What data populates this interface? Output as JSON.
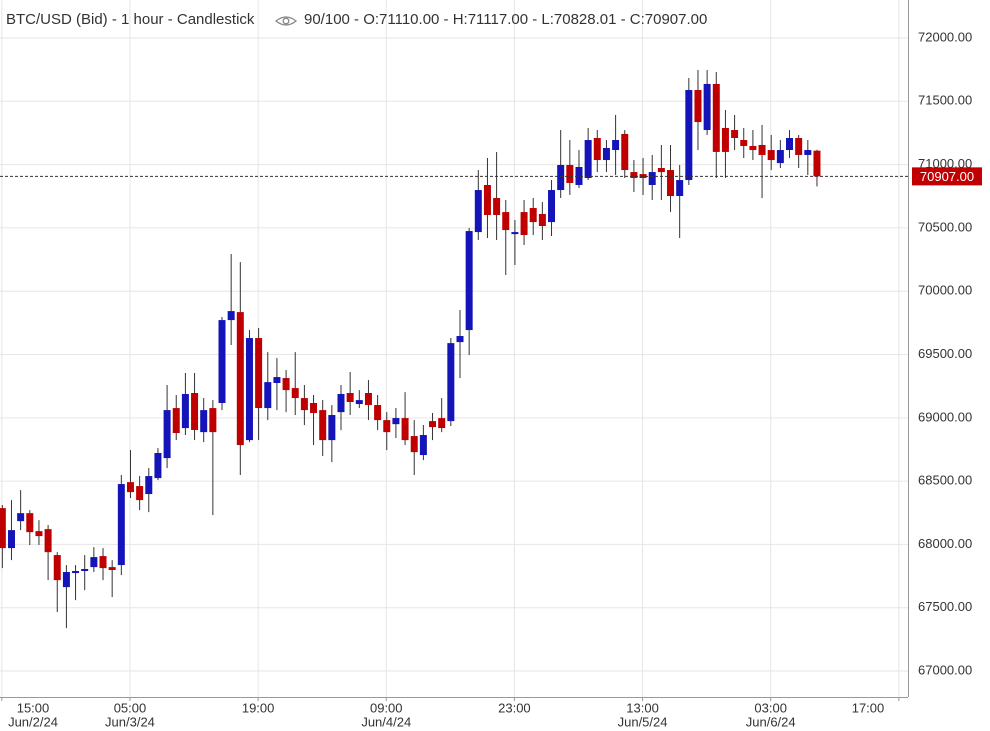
{
  "chart_data": {
    "type": "candlestick",
    "title": "BTC/USD (Bid) - 1 hour - Candlestick",
    "ohlc_summary": "90/100 - O:71110.00 - H:71117.00 - L:70828.01 - C:70907.00",
    "up_color": "#1414b8",
    "down_color": "#c00000",
    "grid": true,
    "xlim": [
      -0.2,
      99
    ],
    "ylim": [
      66795,
      72300
    ],
    "xticks": [
      {
        "value": 0,
        "label": "15:00",
        "date": "Jun/2/24"
      },
      {
        "value": 14,
        "label": "05:00",
        "date": "Jun/3/24"
      },
      {
        "value": 28,
        "label": "19:00"
      },
      {
        "value": 42,
        "label": "09:00",
        "date": "Jun/4/24"
      },
      {
        "value": 56,
        "label": "23:00"
      },
      {
        "value": 70,
        "label": "13:00",
        "date": "Jun/5/24"
      },
      {
        "value": 84,
        "label": "03:00",
        "date": "Jun/6/24"
      },
      {
        "value": 98,
        "label": "17:00"
      }
    ],
    "yticks": [
      {
        "value": 67000,
        "label": "67000.00"
      },
      {
        "value": 67500,
        "label": "67500.00"
      },
      {
        "value": 68000,
        "label": "68000.00"
      },
      {
        "value": 68500,
        "label": "68500.00"
      },
      {
        "value": 69000,
        "label": "69000.00"
      },
      {
        "value": 69500,
        "label": "69500.00"
      },
      {
        "value": 70000,
        "label": "70000.00"
      },
      {
        "value": 70500,
        "label": "70500.00"
      },
      {
        "value": 71000,
        "label": "71000.00"
      },
      {
        "value": 71500,
        "label": "71500.00"
      },
      {
        "value": 72000,
        "label": "72000.00"
      }
    ],
    "last_price": {
      "value": 70907,
      "label": "70907.00"
    },
    "x": [
      0,
      1,
      2,
      3,
      4,
      5,
      6,
      7,
      8,
      9,
      10,
      11,
      12,
      13,
      14,
      15,
      16,
      17,
      18,
      19,
      20,
      21,
      22,
      23,
      24,
      25,
      26,
      27,
      28,
      29,
      30,
      31,
      32,
      33,
      34,
      35,
      36,
      37,
      38,
      39,
      40,
      41,
      42,
      43,
      44,
      45,
      46,
      47,
      48,
      49,
      50,
      51,
      52,
      53,
      54,
      55,
      56,
      57,
      58,
      59,
      60,
      61,
      62,
      63,
      64,
      65,
      66,
      67,
      68,
      69,
      70,
      71,
      72,
      73,
      74,
      75,
      76,
      77,
      78,
      79,
      80,
      81,
      82,
      83,
      84,
      85,
      86,
      87,
      88,
      89
    ],
    "open": [
      68287,
      67971,
      68184,
      68247,
      68105,
      68121,
      67916,
      67663,
      67774,
      67790,
      67821,
      67908,
      67821,
      67837,
      68492,
      68461,
      68398,
      68524,
      68682,
      69077,
      68919,
      69196,
      68887,
      69077,
      69117,
      69772,
      69835,
      68824,
      69630,
      69077,
      69275,
      69314,
      69235,
      69156,
      69117,
      69061,
      68824,
      69045,
      69196,
      69109,
      69196,
      69101,
      68982,
      68950,
      68998,
      68856,
      68706,
      68974,
      68998,
      68974,
      69598,
      69693,
      70467,
      70839,
      70736,
      70625,
      70451,
      70625,
      70657,
      70610,
      70546,
      70799,
      70997,
      70839,
      70894,
      71210,
      71036,
      71115,
      71242,
      70941,
      70925,
      70839,
      70973,
      70957,
      70752,
      70878,
      71589,
      71273,
      71637,
      71289,
      71273,
      71194,
      71147,
      71155,
      71115,
      71012,
      71115,
      71210,
      71076,
      71110
    ],
    "high": [
      68311,
      68350,
      68429,
      68271,
      68192,
      68153,
      67939,
      67837,
      67837,
      67916,
      67979,
      67971,
      67876,
      68548,
      68745,
      68540,
      68603,
      68761,
      69259,
      69180,
      69354,
      69354,
      69156,
      69140,
      69796,
      70294,
      70230,
      69693,
      69709,
      69519,
      69472,
      69377,
      69519,
      69259,
      69180,
      69140,
      69101,
      69259,
      69362,
      69219,
      69298,
      69180,
      69045,
      69077,
      69203,
      68982,
      68943,
      69038,
      69156,
      69630,
      69851,
      70499,
      70957,
      71052,
      71099,
      70720,
      70562,
      70720,
      70736,
      70704,
      70878,
      71273,
      71194,
      71115,
      71289,
      71273,
      71194,
      71392,
      71273,
      71036,
      71052,
      71076,
      71155,
      71155,
      70997,
      71684,
      71747,
      71747,
      71731,
      71431,
      71392,
      71289,
      71273,
      71313,
      71234,
      71194,
      71273,
      71234,
      71194,
      71117
    ],
    "low": [
      67813,
      67876,
      68113,
      67995,
      67995,
      67718,
      67466,
      67339,
      67560,
      67639,
      67782,
      67718,
      67584,
      67758,
      68366,
      68271,
      68255,
      68508,
      68603,
      68824,
      68864,
      68824,
      68808,
      68232,
      69061,
      69575,
      68548,
      68808,
      68824,
      68982,
      69061,
      69045,
      69022,
      68943,
      68785,
      68698,
      68650,
      68903,
      69022,
      69077,
      68982,
      68903,
      68745,
      68840,
      68785,
      68548,
      68666,
      68824,
      68887,
      68935,
      69314,
      69496,
      70404,
      70420,
      70404,
      70128,
      70207,
      70365,
      70444,
      70404,
      70436,
      70736,
      70760,
      70815,
      70878,
      70941,
      70941,
      70918,
      70894,
      70783,
      70760,
      70720,
      70720,
      70625,
      70420,
      70839,
      71115,
      71234,
      70894,
      70894,
      71115,
      71052,
      71036,
      70736,
      70957,
      70973,
      71052,
      70973,
      70918,
      70828.01
    ],
    "close": [
      67971,
      68113,
      68247,
      68097,
      68066,
      67939,
      67718,
      67782,
      67790,
      67806,
      67900,
      67813,
      67798,
      68477,
      68413,
      68350,
      68540,
      68722,
      69061,
      68880,
      69188,
      68904,
      69061,
      68887,
      69772,
      69843,
      68785,
      69630,
      69077,
      69282,
      69322,
      69219,
      69156,
      69061,
      69038,
      68824,
      69022,
      69188,
      69125,
      69140,
      69101,
      68982,
      68887,
      68998,
      68824,
      68729,
      68864,
      68927,
      68919,
      69590,
      69646,
      70475,
      70799,
      70602,
      70602,
      70483,
      70467,
      70444,
      70546,
      70515,
      70799,
      70997,
      70855,
      70981,
      71194,
      71036,
      71131,
      71194,
      70957,
      70894,
      70894,
      70941,
      70941,
      70752,
      70878,
      71589,
      71336,
      71637,
      71100,
      71100,
      71210,
      71147,
      71115,
      71076,
      71036,
      71115,
      71210,
      71076,
      71115,
      70907
    ]
  }
}
